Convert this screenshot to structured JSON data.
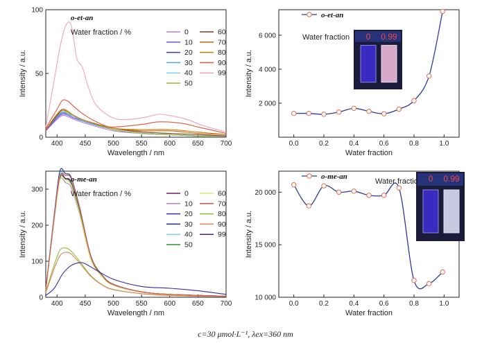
{
  "caption": "c=30 μmol·L⁻¹, λex=360 nm",
  "colors": {
    "s0": "#b77be0",
    "s10": "#6c4fe0",
    "s20": "#3b3bb3",
    "s30": "#4fa7e8",
    "s40": "#7bd3f0",
    "s50": "#8bbf2f",
    "s60": "#8a3a1f",
    "s70": "#b86a1a",
    "s80": "#cc7700",
    "s90": "#e0553f",
    "s99": "#f4a0c0",
    "m0": "#6a1a6a",
    "m10": "#b77be0",
    "m20": "#4a2aa0",
    "m30": "#1a2a8a",
    "m40": "#7bd3f0",
    "m50": "#3a8a2a",
    "m60": "#e0e07a",
    "m70": "#e0553f",
    "m80": "#8bbf2f",
    "m90": "#e08060",
    "m99": "#3a2aa0",
    "scatter_line": "#2a3a9a",
    "scatter_marker": "#e86a4a"
  },
  "chart_data": [
    {
      "type": "line",
      "title": "o-et-an",
      "legend_title": "Water fraction / %",
      "xlabel": "Wavelength / nm",
      "ylabel": "Intensity / a.u.",
      "xlim": [
        380,
        700
      ],
      "ylim": [
        0,
        100
      ],
      "xticks": [
        "400",
        "450",
        "500",
        "550",
        "600",
        "650",
        "700"
      ],
      "yticks": [
        "0",
        "50",
        "100"
      ],
      "series": [
        {
          "name": "0",
          "color_key": "s0",
          "x": [
            380,
            400,
            410,
            420,
            430,
            450,
            500,
            550,
            600,
            650,
            700
          ],
          "y": [
            5,
            14,
            17,
            16,
            14,
            11,
            5,
            3,
            2,
            1,
            1
          ]
        },
        {
          "name": "10",
          "color_key": "s10",
          "x": [
            380,
            400,
            410,
            420,
            430,
            450,
            500,
            550,
            600,
            650,
            700
          ],
          "y": [
            5,
            15,
            18,
            17,
            15,
            12,
            6,
            3,
            2,
            1,
            1
          ]
        },
        {
          "name": "20",
          "color_key": "s20",
          "x": [
            380,
            400,
            410,
            420,
            430,
            450,
            500,
            550,
            600,
            650,
            700
          ],
          "y": [
            6,
            16,
            19,
            18,
            16,
            12,
            6,
            3,
            2,
            1,
            1
          ]
        },
        {
          "name": "30",
          "color_key": "s30",
          "x": [
            380,
            400,
            410,
            420,
            430,
            450,
            500,
            550,
            600,
            650,
            700
          ],
          "y": [
            6,
            16,
            20,
            18,
            16,
            12,
            6,
            3,
            2,
            1,
            1
          ]
        },
        {
          "name": "40",
          "color_key": "s40",
          "x": [
            380,
            400,
            410,
            420,
            430,
            450,
            500,
            550,
            600,
            650,
            700
          ],
          "y": [
            6,
            17,
            21,
            19,
            16,
            13,
            6,
            3,
            2,
            1,
            1
          ]
        },
        {
          "name": "50",
          "color_key": "s50",
          "x": [
            380,
            400,
            410,
            420,
            430,
            450,
            500,
            550,
            600,
            650,
            700
          ],
          "y": [
            6,
            17,
            21,
            19,
            17,
            13,
            6,
            3,
            2,
            1,
            1
          ]
        },
        {
          "name": "60",
          "color_key": "s60",
          "x": [
            380,
            400,
            410,
            420,
            430,
            450,
            500,
            550,
            600,
            650,
            700
          ],
          "y": [
            6,
            17,
            22,
            20,
            17,
            13,
            7,
            4,
            3,
            2,
            1
          ]
        },
        {
          "name": "70",
          "color_key": "s70",
          "x": [
            380,
            400,
            410,
            420,
            430,
            450,
            500,
            550,
            600,
            650,
            700
          ],
          "y": [
            6,
            18,
            22,
            20,
            17,
            13,
            7,
            5,
            5,
            3,
            2
          ]
        },
        {
          "name": "80",
          "color_key": "s80",
          "x": [
            380,
            400,
            410,
            420,
            430,
            450,
            500,
            550,
            600,
            650,
            700
          ],
          "y": [
            6,
            18,
            21,
            20,
            17,
            13,
            7,
            6,
            6,
            4,
            2
          ]
        },
        {
          "name": "90",
          "color_key": "s90",
          "x": [
            380,
            400,
            410,
            420,
            430,
            450,
            480,
            500,
            550,
            580,
            620,
            650,
            700
          ],
          "y": [
            7,
            22,
            29,
            28,
            24,
            17,
            10,
            8,
            10,
            12,
            11,
            8,
            3
          ]
        },
        {
          "name": "99",
          "color_key": "s99",
          "x": [
            380,
            395,
            405,
            415,
            425,
            435,
            445,
            455,
            470,
            500,
            530,
            560,
            580,
            600,
            630,
            660,
            700
          ],
          "y": [
            8,
            45,
            70,
            87,
            88,
            62,
            55,
            40,
            25,
            15,
            14,
            16,
            18,
            17,
            14,
            9,
            4
          ]
        }
      ]
    },
    {
      "type": "line",
      "title": "o-me-an",
      "legend_title": "Water fraction / %",
      "xlabel": "Wavelength / nm",
      "ylabel": "Intensity / a.u.",
      "xlim": [
        380,
        700
      ],
      "ylim": [
        0,
        350
      ],
      "xticks": [
        "400",
        "450",
        "500",
        "550",
        "600",
        "650",
        "700"
      ],
      "yticks": [
        "0",
        "100",
        "200",
        "300"
      ],
      "series": [
        {
          "name": "0",
          "color_key": "m0",
          "x": [
            380,
            395,
            405,
            415,
            425,
            440,
            460,
            480,
            500,
            550,
            600,
            700
          ],
          "y": [
            20,
            220,
            335,
            330,
            320,
            240,
            110,
            60,
            35,
            15,
            8,
            3
          ]
        },
        {
          "name": "10",
          "color_key": "m10",
          "x": [
            380,
            395,
            405,
            415,
            425,
            440,
            460,
            480,
            500,
            550,
            600,
            700
          ],
          "y": [
            20,
            215,
            325,
            318,
            305,
            230,
            105,
            58,
            33,
            14,
            7,
            3
          ]
        },
        {
          "name": "20",
          "color_key": "m20",
          "x": [
            380,
            395,
            405,
            415,
            425,
            440,
            460,
            480,
            500,
            550,
            600,
            700
          ],
          "y": [
            20,
            220,
            330,
            328,
            315,
            235,
            108,
            60,
            34,
            15,
            8,
            3
          ]
        },
        {
          "name": "30",
          "color_key": "m30",
          "x": [
            380,
            395,
            405,
            415,
            425,
            440,
            460,
            480,
            500,
            550,
            600,
            700
          ],
          "y": [
            22,
            230,
            350,
            343,
            333,
            250,
            115,
            62,
            36,
            15,
            8,
            3
          ]
        },
        {
          "name": "40",
          "color_key": "m40",
          "x": [
            380,
            395,
            405,
            415,
            425,
            440,
            460,
            480,
            500,
            550,
            600,
            700
          ],
          "y": [
            22,
            225,
            340,
            338,
            328,
            245,
            112,
            60,
            35,
            15,
            8,
            3
          ]
        },
        {
          "name": "50",
          "color_key": "m50",
          "x": [
            380,
            395,
            405,
            415,
            425,
            440,
            460,
            480,
            500,
            550,
            600,
            700
          ],
          "y": [
            20,
            218,
            330,
            328,
            318,
            238,
            110,
            58,
            34,
            15,
            8,
            3
          ]
        },
        {
          "name": "60",
          "color_key": "m60",
          "x": [
            380,
            395,
            405,
            415,
            425,
            440,
            460,
            480,
            500,
            550,
            600,
            700
          ],
          "y": [
            20,
            215,
            325,
            322,
            312,
            232,
            106,
            57,
            33,
            14,
            7,
            3
          ]
        },
        {
          "name": "70",
          "color_key": "m70",
          "x": [
            380,
            395,
            405,
            415,
            425,
            440,
            460,
            480,
            500,
            550,
            600,
            700
          ],
          "y": [
            21,
            222,
            335,
            338,
            330,
            248,
            114,
            61,
            35,
            15,
            8,
            3
          ]
        },
        {
          "name": "80",
          "color_key": "m80",
          "x": [
            380,
            395,
            405,
            415,
            425,
            440,
            460,
            480,
            500,
            550,
            600,
            700
          ],
          "y": [
            15,
            90,
            130,
            137,
            128,
            100,
            60,
            35,
            22,
            10,
            5,
            2
          ]
        },
        {
          "name": "90",
          "color_key": "m90",
          "x": [
            380,
            395,
            405,
            415,
            425,
            440,
            460,
            480,
            500,
            550,
            600,
            700
          ],
          "y": [
            12,
            80,
            115,
            125,
            120,
            95,
            58,
            34,
            21,
            10,
            5,
            2
          ]
        },
        {
          "name": "99",
          "color_key": "m99",
          "x": [
            380,
            395,
            410,
            425,
            440,
            450,
            470,
            500,
            550,
            600,
            650,
            700
          ],
          "y": [
            5,
            25,
            65,
            88,
            96,
            93,
            75,
            50,
            30,
            25,
            18,
            8
          ]
        }
      ]
    },
    {
      "type": "scatter",
      "title": "o-et-an",
      "inset_label": "Water fraction",
      "xlabel": "Water fraction",
      "ylabel": "Intensity / a.u.",
      "xlim": [
        -0.1,
        1.1
      ],
      "ylim": [
        0,
        7500
      ],
      "xticks": [
        "0.0",
        "0.2",
        "0.4",
        "0.6",
        "0.8",
        "1.0"
      ],
      "yticks": [
        "2 000",
        "4 000",
        "6 000"
      ],
      "x": [
        0.0,
        0.1,
        0.2,
        0.3,
        0.4,
        0.5,
        0.6,
        0.7,
        0.8,
        0.9,
        0.99
      ],
      "y": [
        1400,
        1400,
        1350,
        1480,
        1700,
        1520,
        1380,
        1650,
        2150,
        3600,
        7400
      ],
      "photo_labels": [
        "0",
        "0.99"
      ]
    },
    {
      "type": "scatter",
      "title": "o-me-an",
      "inset_label": "Water fraction",
      "xlabel": "Water fraction",
      "ylabel": "Intensity / a.u.",
      "xlim": [
        -0.1,
        1.1
      ],
      "ylim": [
        10000,
        22000
      ],
      "xticks": [
        "0.0",
        "0.2",
        "0.4",
        "0.6",
        "0.8",
        "1.0"
      ],
      "yticks": [
        "10 000",
        "15 000",
        "20 000"
      ],
      "x": [
        0.0,
        0.1,
        0.2,
        0.3,
        0.4,
        0.5,
        0.6,
        0.7,
        0.8,
        0.9,
        0.99
      ],
      "y": [
        20700,
        18700,
        20600,
        20000,
        20100,
        19700,
        19700,
        20400,
        11600,
        11300,
        12400
      ],
      "photo_labels": [
        "0",
        "0.99"
      ]
    }
  ]
}
